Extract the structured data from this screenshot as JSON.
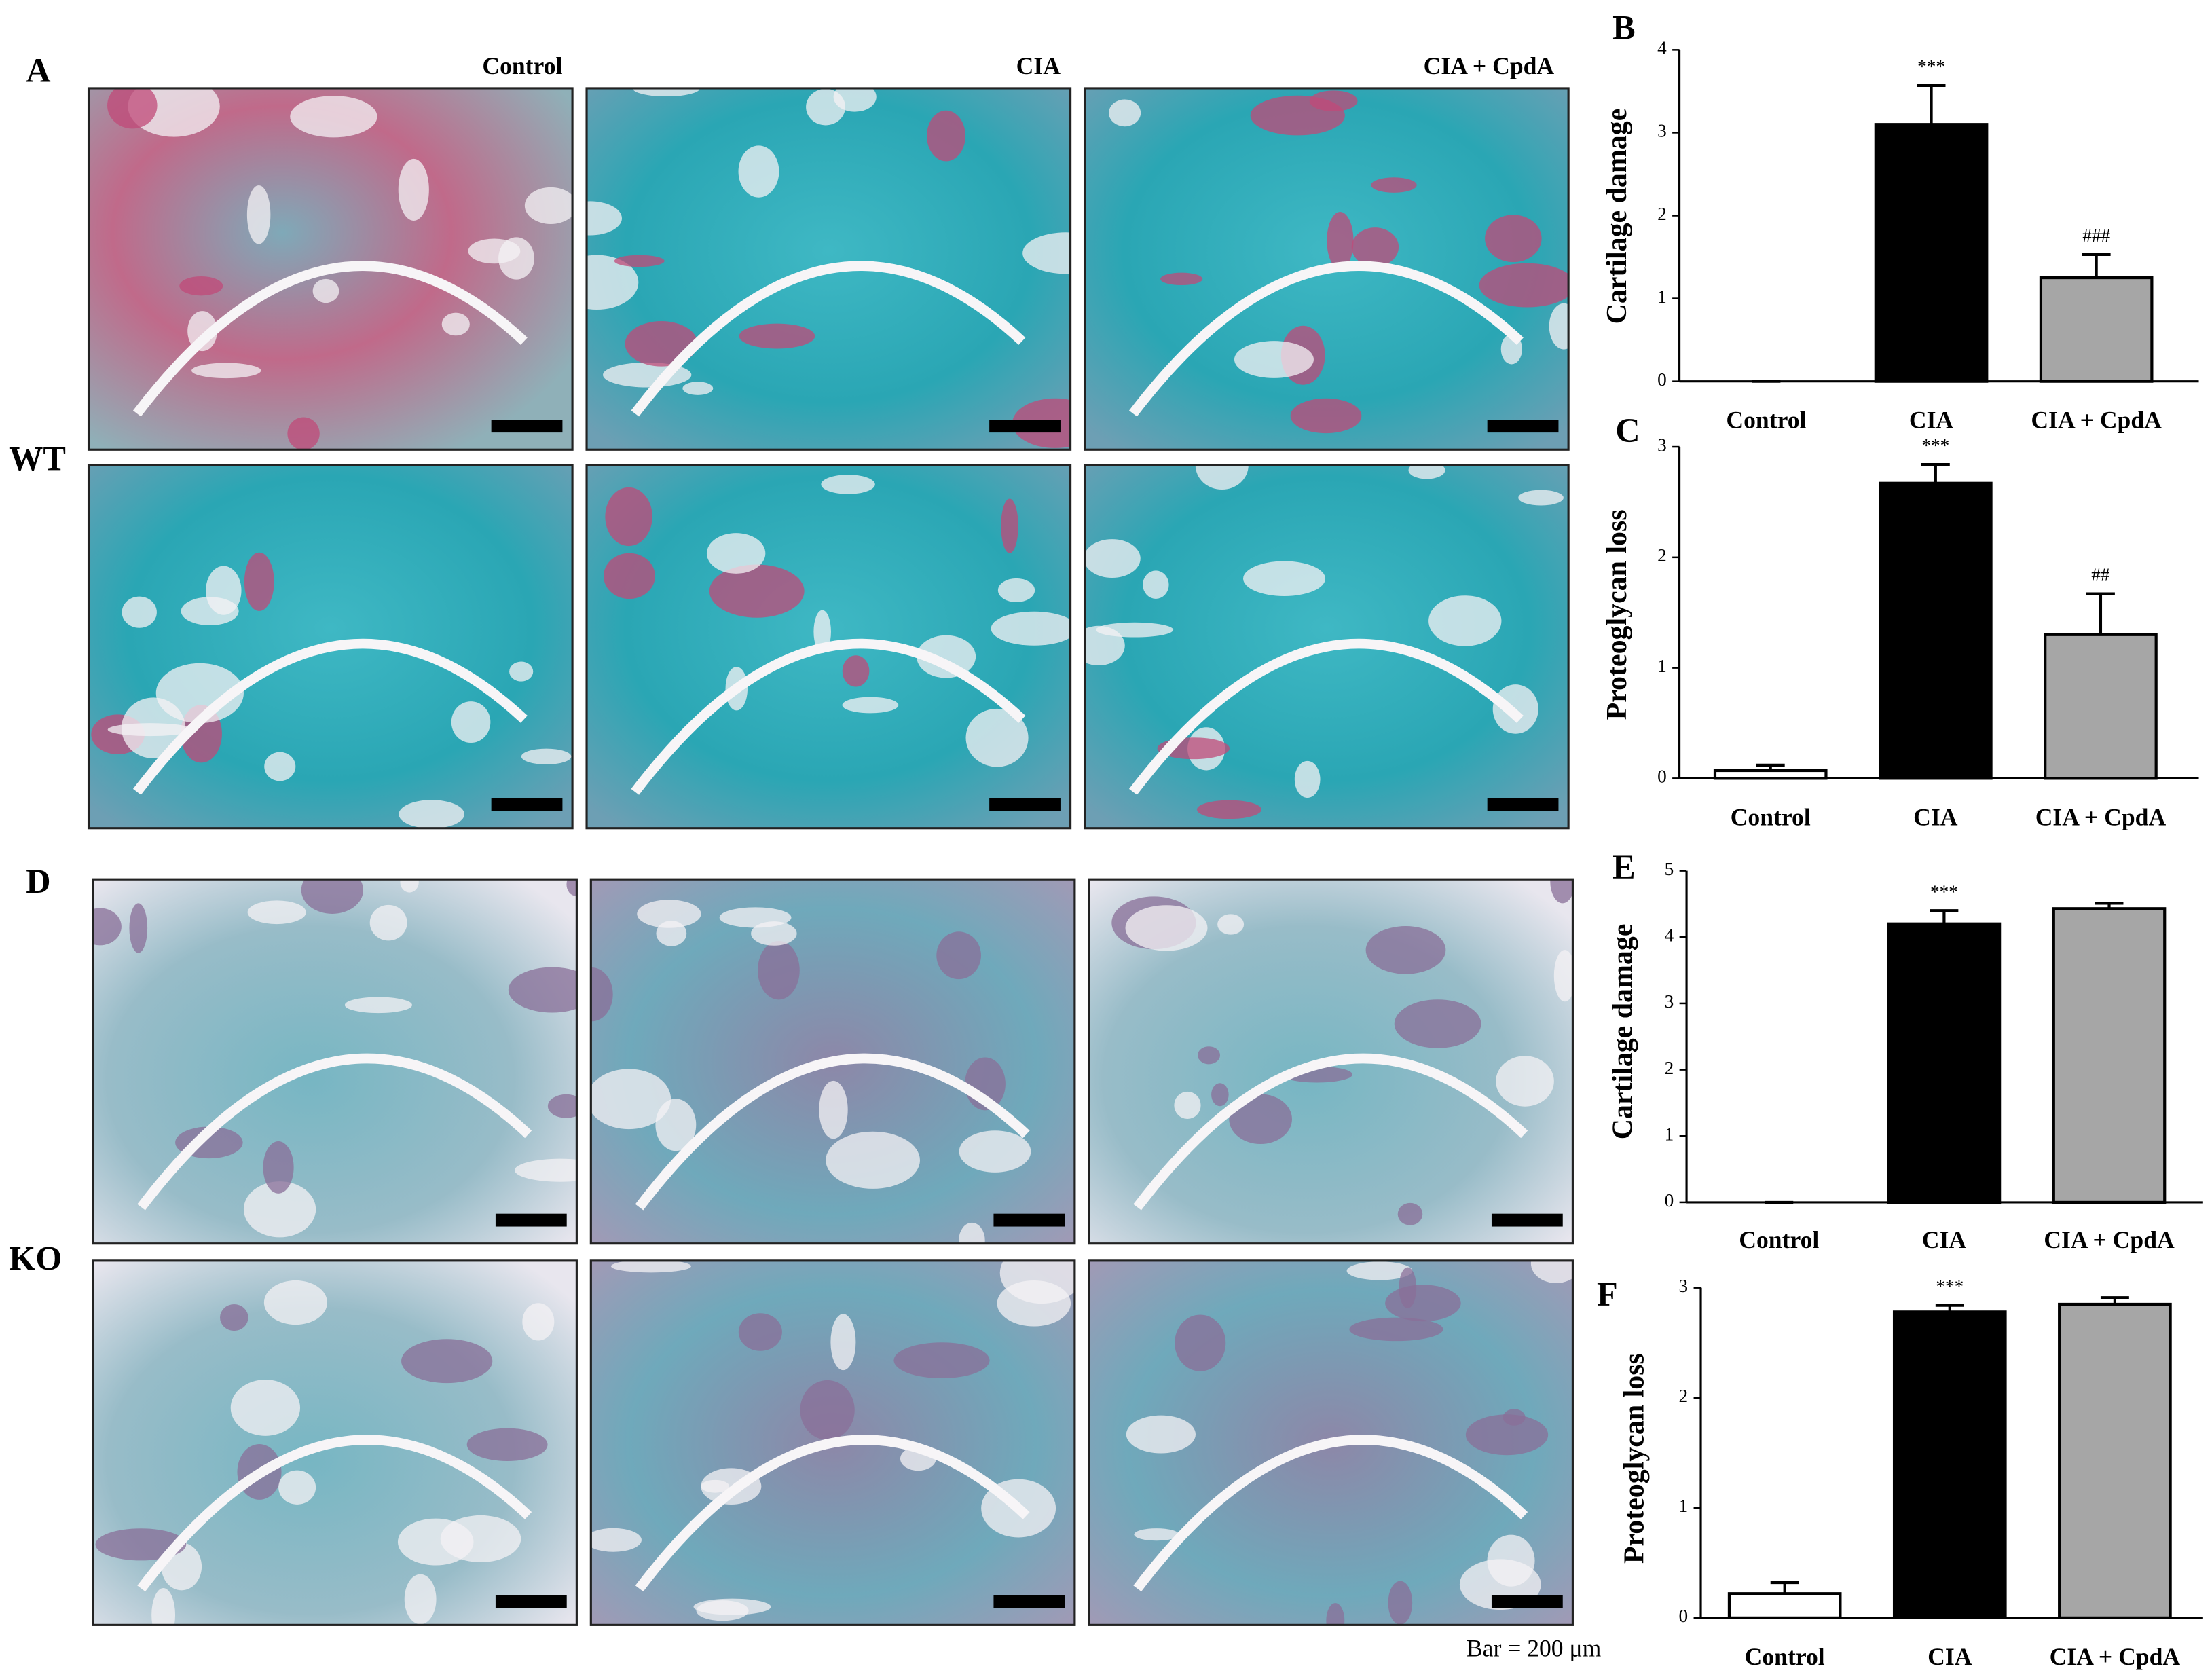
{
  "figure": {
    "panel_labels": [
      "A",
      "D"
    ],
    "row_labels": [
      "WT",
      "KO"
    ],
    "column_headers": [
      "Control",
      "CIA",
      "CIA + CpdA"
    ],
    "scale_note": "Bar = 200 μm"
  },
  "chart_data": [
    {
      "type": "bar",
      "panel_label": "B",
      "y_label": "Cartilage damage",
      "categories": [
        "Control",
        "CIA",
        "CIA + CpdA"
      ],
      "values": [
        0,
        3.1,
        1.25
      ],
      "errors": [
        0,
        0.47,
        0.28
      ],
      "annotations": [
        null,
        "***",
        "###"
      ],
      "colors": [
        "#ffffff",
        "#000000",
        "#a6a6a6"
      ],
      "ylim": [
        0,
        4
      ],
      "yticks": [
        0,
        1,
        2,
        3,
        4
      ]
    },
    {
      "type": "bar",
      "panel_label": "C",
      "y_label": "Proteoglycan loss",
      "categories": [
        "Control",
        "CIA",
        "CIA + CpdA"
      ],
      "values": [
        0.07,
        2.67,
        1.3
      ],
      "errors": [
        0.05,
        0.17,
        0.37
      ],
      "annotations": [
        null,
        "***",
        "##"
      ],
      "colors": [
        "#ffffff",
        "#000000",
        "#a6a6a6"
      ],
      "ylim": [
        0,
        3
      ],
      "yticks": [
        0,
        1,
        2,
        3
      ]
    },
    {
      "type": "bar",
      "panel_label": "E",
      "y_label": "Cartilage damage",
      "categories": [
        "Control",
        "CIA",
        "CIA + CpdA"
      ],
      "values": [
        0,
        4.2,
        4.43
      ],
      "errors": [
        0,
        0.2,
        0.08
      ],
      "annotations": [
        null,
        "***",
        null
      ],
      "colors": [
        "#ffffff",
        "#000000",
        "#a6a6a6"
      ],
      "ylim": [
        0,
        5
      ],
      "yticks": [
        0,
        1,
        2,
        3,
        4,
        5
      ]
    },
    {
      "type": "bar",
      "panel_label": "F",
      "y_label": "Proteoglycan loss",
      "categories": [
        "Control",
        "CIA",
        "CIA + CpdA"
      ],
      "values": [
        0.22,
        2.78,
        2.85
      ],
      "errors": [
        0.1,
        0.06,
        0.06
      ],
      "annotations": [
        null,
        "***",
        null
      ],
      "colors": [
        "#ffffff",
        "#000000",
        "#a6a6a6"
      ],
      "ylim": [
        0,
        3
      ],
      "yticks": [
        0,
        1,
        2,
        3
      ]
    }
  ]
}
